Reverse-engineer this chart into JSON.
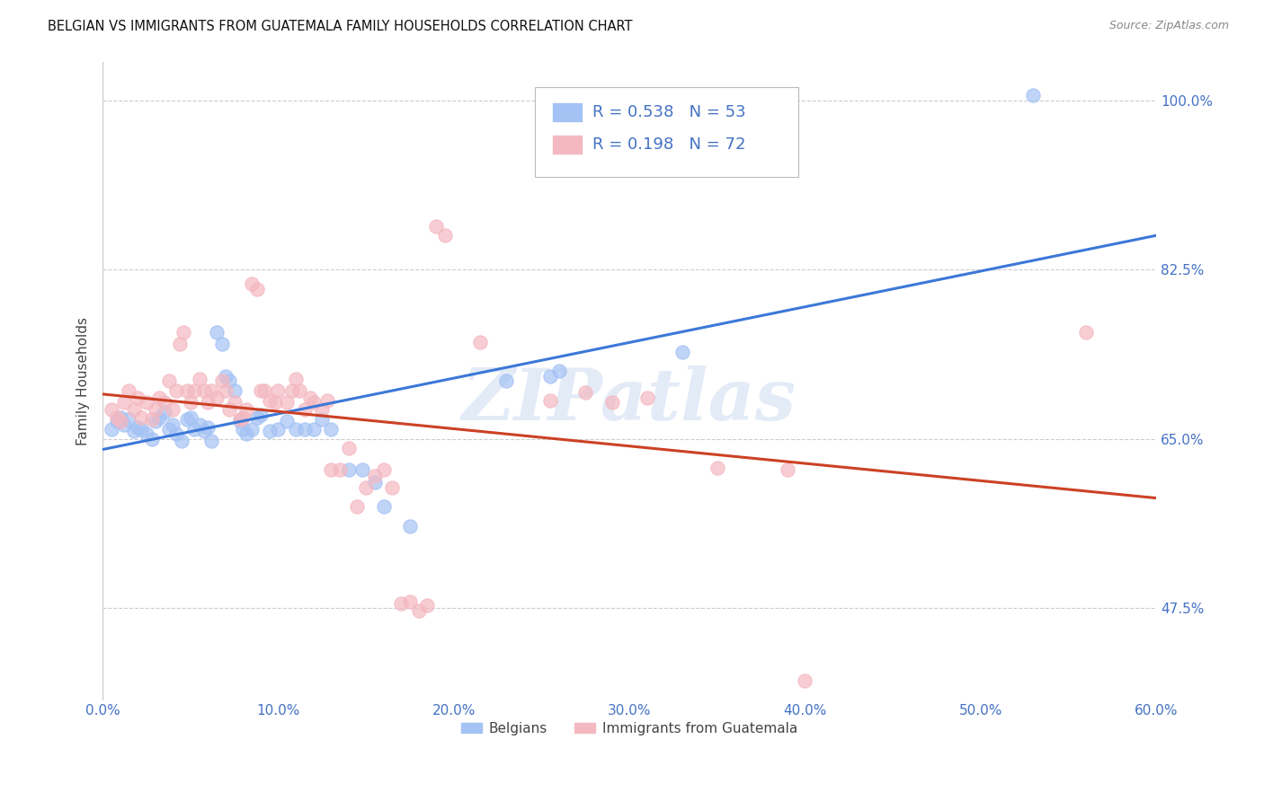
{
  "title": "BELGIAN VS IMMIGRANTS FROM GUATEMALA FAMILY HOUSEHOLDS CORRELATION CHART",
  "source": "Source: ZipAtlas.com",
  "ylabel": "Family Households",
  "xlim": [
    0.0,
    0.6
  ],
  "ylim": [
    0.38,
    1.04
  ],
  "ytick_labels_shown": [
    0.475,
    0.65,
    0.825,
    1.0
  ],
  "xtick_labels_shown": [
    0.0,
    0.1,
    0.2,
    0.3,
    0.4,
    0.5,
    0.6
  ],
  "belgian_color": "#a4c2f4",
  "guatemalan_color": "#f4b8c1",
  "belgian_line_color": "#3c78d8",
  "guatemalan_line_color": "#cc4125",
  "legend_text_color": "#4472c4",
  "watermark": "ZIPatlas",
  "legend_r_belgian": "0.538",
  "legend_n_belgian": "53",
  "legend_r_guatemalan": "0.198",
  "legend_n_guatemalan": "72",
  "belgian_points": [
    [
      0.005,
      0.66
    ],
    [
      0.008,
      0.668
    ],
    [
      0.01,
      0.672
    ],
    [
      0.012,
      0.665
    ],
    [
      0.015,
      0.67
    ],
    [
      0.018,
      0.658
    ],
    [
      0.02,
      0.662
    ],
    [
      0.022,
      0.66
    ],
    [
      0.025,
      0.655
    ],
    [
      0.028,
      0.65
    ],
    [
      0.03,
      0.668
    ],
    [
      0.032,
      0.672
    ],
    [
      0.035,
      0.678
    ],
    [
      0.038,
      0.66
    ],
    [
      0.04,
      0.665
    ],
    [
      0.042,
      0.655
    ],
    [
      0.045,
      0.648
    ],
    [
      0.048,
      0.67
    ],
    [
      0.05,
      0.672
    ],
    [
      0.052,
      0.66
    ],
    [
      0.055,
      0.665
    ],
    [
      0.058,
      0.658
    ],
    [
      0.06,
      0.662
    ],
    [
      0.062,
      0.648
    ],
    [
      0.065,
      0.76
    ],
    [
      0.068,
      0.748
    ],
    [
      0.07,
      0.715
    ],
    [
      0.072,
      0.71
    ],
    [
      0.075,
      0.7
    ],
    [
      0.078,
      0.668
    ],
    [
      0.08,
      0.66
    ],
    [
      0.082,
      0.655
    ],
    [
      0.085,
      0.66
    ],
    [
      0.088,
      0.672
    ],
    [
      0.09,
      0.675
    ],
    [
      0.095,
      0.658
    ],
    [
      0.1,
      0.66
    ],
    [
      0.105,
      0.668
    ],
    [
      0.11,
      0.66
    ],
    [
      0.115,
      0.66
    ],
    [
      0.12,
      0.66
    ],
    [
      0.125,
      0.67
    ],
    [
      0.13,
      0.66
    ],
    [
      0.14,
      0.618
    ],
    [
      0.148,
      0.618
    ],
    [
      0.155,
      0.605
    ],
    [
      0.16,
      0.58
    ],
    [
      0.175,
      0.56
    ],
    [
      0.23,
      0.71
    ],
    [
      0.255,
      0.715
    ],
    [
      0.26,
      0.72
    ],
    [
      0.33,
      0.74
    ],
    [
      0.53,
      1.005
    ]
  ],
  "guatemalan_points": [
    [
      0.005,
      0.68
    ],
    [
      0.008,
      0.672
    ],
    [
      0.01,
      0.668
    ],
    [
      0.012,
      0.688
    ],
    [
      0.015,
      0.7
    ],
    [
      0.018,
      0.68
    ],
    [
      0.02,
      0.692
    ],
    [
      0.022,
      0.672
    ],
    [
      0.025,
      0.688
    ],
    [
      0.028,
      0.67
    ],
    [
      0.03,
      0.68
    ],
    [
      0.032,
      0.692
    ],
    [
      0.035,
      0.688
    ],
    [
      0.038,
      0.71
    ],
    [
      0.04,
      0.68
    ],
    [
      0.042,
      0.7
    ],
    [
      0.044,
      0.748
    ],
    [
      0.046,
      0.76
    ],
    [
      0.048,
      0.7
    ],
    [
      0.05,
      0.688
    ],
    [
      0.052,
      0.7
    ],
    [
      0.055,
      0.712
    ],
    [
      0.058,
      0.7
    ],
    [
      0.06,
      0.688
    ],
    [
      0.062,
      0.7
    ],
    [
      0.065,
      0.692
    ],
    [
      0.068,
      0.71
    ],
    [
      0.07,
      0.7
    ],
    [
      0.072,
      0.68
    ],
    [
      0.075,
      0.688
    ],
    [
      0.078,
      0.67
    ],
    [
      0.08,
      0.672
    ],
    [
      0.082,
      0.68
    ],
    [
      0.085,
      0.81
    ],
    [
      0.088,
      0.805
    ],
    [
      0.09,
      0.7
    ],
    [
      0.092,
      0.7
    ],
    [
      0.095,
      0.69
    ],
    [
      0.098,
      0.688
    ],
    [
      0.1,
      0.7
    ],
    [
      0.105,
      0.688
    ],
    [
      0.108,
      0.7
    ],
    [
      0.11,
      0.712
    ],
    [
      0.112,
      0.7
    ],
    [
      0.115,
      0.68
    ],
    [
      0.118,
      0.692
    ],
    [
      0.12,
      0.688
    ],
    [
      0.125,
      0.68
    ],
    [
      0.128,
      0.69
    ],
    [
      0.13,
      0.618
    ],
    [
      0.135,
      0.618
    ],
    [
      0.14,
      0.64
    ],
    [
      0.145,
      0.58
    ],
    [
      0.15,
      0.6
    ],
    [
      0.155,
      0.612
    ],
    [
      0.16,
      0.618
    ],
    [
      0.165,
      0.6
    ],
    [
      0.17,
      0.48
    ],
    [
      0.175,
      0.482
    ],
    [
      0.18,
      0.472
    ],
    [
      0.185,
      0.478
    ],
    [
      0.19,
      0.87
    ],
    [
      0.195,
      0.86
    ],
    [
      0.215,
      0.75
    ],
    [
      0.255,
      0.69
    ],
    [
      0.275,
      0.698
    ],
    [
      0.29,
      0.688
    ],
    [
      0.31,
      0.692
    ],
    [
      0.35,
      0.62
    ],
    [
      0.39,
      0.618
    ],
    [
      0.4,
      0.4
    ],
    [
      0.56,
      0.76
    ]
  ]
}
